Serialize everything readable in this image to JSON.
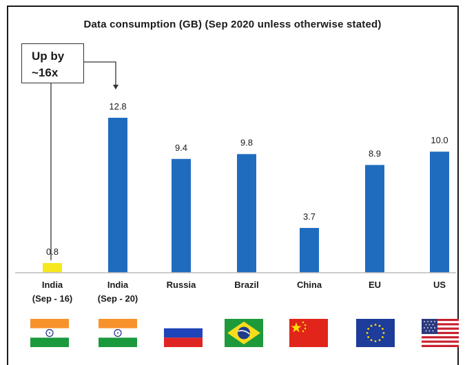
{
  "chart_data": {
    "type": "bar",
    "title": "Data consumption (GB) (Sep 2020 unless otherwise stated)",
    "categories": [
      [
        "India",
        "(Sep - 16)"
      ],
      [
        "India",
        "(Sep - 20)"
      ],
      [
        "Russia"
      ],
      [
        "Brazil"
      ],
      [
        "China"
      ],
      [
        "EU"
      ],
      [
        "US"
      ]
    ],
    "values": [
      0.8,
      12.8,
      9.4,
      9.8,
      3.7,
      8.9,
      10.0
    ],
    "value_labels": [
      "0.8",
      "12.8",
      "9.4",
      "9.8",
      "3.7",
      "8.9",
      "10.0"
    ],
    "colors": [
      "#f6e81c",
      "#1f6cbf",
      "#1f6cbf",
      "#1f6cbf",
      "#1f6cbf",
      "#1f6cbf",
      "#1f6cbf"
    ],
    "ylim": [
      0,
      14
    ],
    "grid": false,
    "legend": "none",
    "annotation": {
      "lines": [
        "Up by",
        "~16x"
      ]
    },
    "flags": [
      "india-flag-icon",
      "india-flag-icon",
      "russia-flag-icon",
      "brazil-flag-icon",
      "china-flag-icon",
      "eu-flag-icon",
      "us-flag-icon"
    ]
  }
}
